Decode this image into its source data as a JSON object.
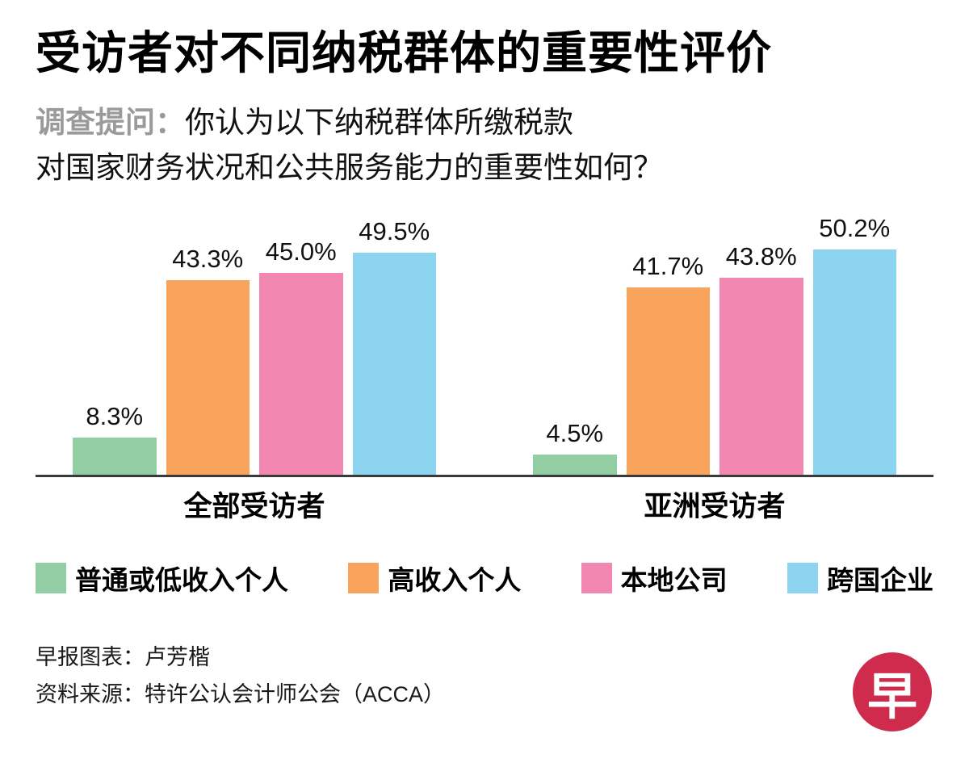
{
  "title": "受访者对不同纳税群体的重要性评价",
  "subtitle": {
    "prefix": "调查提问：",
    "line1": "你认为以下纳税群体所缴税款",
    "line2": "对国家财务状况和公共服务能力的重要性如何？"
  },
  "chart_data": {
    "type": "bar",
    "categories": [
      "全部受访者",
      "亚洲受访者"
    ],
    "series": [
      {
        "name": "普通或低收入个人",
        "color": "#92cda4",
        "values": [
          8.3,
          4.5
        ],
        "labels": [
          "8.3%",
          "4.5%"
        ]
      },
      {
        "name": "高收入个人",
        "color": "#f9a45c",
        "values": [
          43.3,
          41.7
        ],
        "labels": [
          "43.3%",
          "41.7%"
        ]
      },
      {
        "name": "本地公司",
        "color": "#f287b2",
        "values": [
          45.0,
          43.8
        ],
        "labels": [
          "45.0%",
          "43.8%"
        ]
      },
      {
        "name": "跨国企业",
        "color": "#8dd4f0",
        "values": [
          49.5,
          50.2
        ],
        "labels": [
          "49.5%",
          "50.2%"
        ]
      }
    ],
    "value_suffix": "%",
    "ylim": [
      0,
      55
    ],
    "grid": false,
    "legend_position": "bottom",
    "baseline_color": "#3a3a3a"
  },
  "footer": {
    "credit": "早报图表：卢芳楷",
    "source": "资料来源：特许公认会计师公会（ACCA）"
  },
  "logo": {
    "char": "早",
    "color": "#ce2b4d"
  }
}
